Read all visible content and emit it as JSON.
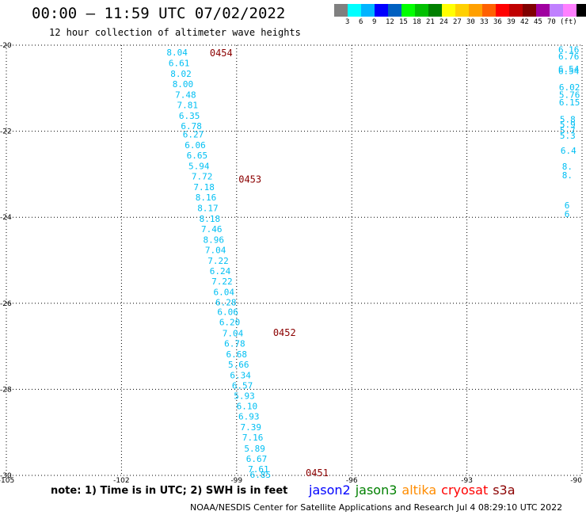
{
  "header": {
    "title": "00:00 – 11:59 UTC 07/02/2022",
    "subtitle": "12 hour collection of altimeter wave heights"
  },
  "colorbar": {
    "colors": [
      "#808080",
      "#00ffff",
      "#00b4ff",
      "#0000ff",
      "#0060c0",
      "#00ff00",
      "#00c000",
      "#008000",
      "#ffff00",
      "#ffd000",
      "#ffa000",
      "#ff6000",
      "#ff0000",
      "#c00000",
      "#800000",
      "#a000a0",
      "#c080ff",
      "#ff80ff",
      "#000000"
    ],
    "labels": [
      "3",
      "6",
      "9",
      "12",
      "15",
      "18",
      "21",
      "24",
      "27",
      "30",
      "33",
      "36",
      "39",
      "42",
      "45",
      "70"
    ],
    "unit": "(ft)"
  },
  "map": {
    "lon_range": [
      -105,
      -90
    ],
    "lat_range": [
      -30,
      -20
    ],
    "lon_ticks": [
      "-105",
      "-102",
      "-99",
      "-96",
      "-93",
      "-90"
    ],
    "lat_ticks": [
      "-20",
      "-22",
      "-24",
      "-26",
      "-28",
      "-30"
    ],
    "main_track": [
      {
        "lon": -100.55,
        "lat": -20.17,
        "swh": "8.04"
      },
      {
        "lon": -100.5,
        "lat": -20.41,
        "swh": "6.61"
      },
      {
        "lon": -100.45,
        "lat": -20.66,
        "swh": "8.02"
      },
      {
        "lon": -100.4,
        "lat": -20.9,
        "swh": "8.00"
      },
      {
        "lon": -100.33,
        "lat": -21.15,
        "swh": "7.48"
      },
      {
        "lon": -100.28,
        "lat": -21.39,
        "swh": "7.81"
      },
      {
        "lon": -100.23,
        "lat": -21.64,
        "swh": "6.35"
      },
      {
        "lon": -100.18,
        "lat": -21.88,
        "swh": "6.78"
      },
      {
        "lon": -100.13,
        "lat": -22.07,
        "swh": "6.27"
      },
      {
        "lon": -100.08,
        "lat": -22.32,
        "swh": "6.06"
      },
      {
        "lon": -100.03,
        "lat": -22.56,
        "swh": "6.65"
      },
      {
        "lon": -99.98,
        "lat": -22.81,
        "swh": "5.94"
      },
      {
        "lon": -99.9,
        "lat": -23.05,
        "swh": "7.72"
      },
      {
        "lon": -99.85,
        "lat": -23.3,
        "swh": "7.18"
      },
      {
        "lon": -99.8,
        "lat": -23.54,
        "swh": "8.16"
      },
      {
        "lon": -99.75,
        "lat": -23.78,
        "swh": "8.17"
      },
      {
        "lon": -99.7,
        "lat": -24.03,
        "swh": "8.18"
      },
      {
        "lon": -99.65,
        "lat": -24.27,
        "swh": "7.46"
      },
      {
        "lon": -99.6,
        "lat": -24.52,
        "swh": "8.96"
      },
      {
        "lon": -99.55,
        "lat": -24.76,
        "swh": "7.04"
      },
      {
        "lon": -99.48,
        "lat": -25.01,
        "swh": "7.22"
      },
      {
        "lon": -99.43,
        "lat": -25.25,
        "swh": "6.24"
      },
      {
        "lon": -99.38,
        "lat": -25.49,
        "swh": "7.22"
      },
      {
        "lon": -99.33,
        "lat": -25.74,
        "swh": "6.04"
      },
      {
        "lon": -99.28,
        "lat": -25.98,
        "swh": "6.28"
      },
      {
        "lon": -99.23,
        "lat": -26.2,
        "swh": "6.06"
      },
      {
        "lon": -99.18,
        "lat": -26.44,
        "swh": "6.20"
      },
      {
        "lon": -99.1,
        "lat": -26.69,
        "swh": "7.04"
      },
      {
        "lon": -99.05,
        "lat": -26.93,
        "swh": "6.78"
      },
      {
        "lon": -99.0,
        "lat": -27.18,
        "swh": "6.68"
      },
      {
        "lon": -98.95,
        "lat": -27.42,
        "swh": "5.66"
      },
      {
        "lon": -98.9,
        "lat": -27.67,
        "swh": "6.34"
      },
      {
        "lon": -98.85,
        "lat": -27.91,
        "swh": "6.57"
      },
      {
        "lon": -98.8,
        "lat": -28.15,
        "swh": "5.93"
      },
      {
        "lon": -98.73,
        "lat": -28.39,
        "swh": "6.10"
      },
      {
        "lon": -98.68,
        "lat": -28.63,
        "swh": "6.93"
      },
      {
        "lon": -98.63,
        "lat": -28.88,
        "swh": "7.39"
      },
      {
        "lon": -98.58,
        "lat": -29.12,
        "swh": "7.16"
      },
      {
        "lon": -98.53,
        "lat": -29.37,
        "swh": "5.89"
      },
      {
        "lon": -98.48,
        "lat": -29.61,
        "swh": "6.67"
      },
      {
        "lon": -98.43,
        "lat": -29.85,
        "swh": "7.61"
      },
      {
        "lon": -98.38,
        "lat": -29.98,
        "swh": "6.85"
      }
    ],
    "pass_labels": [
      {
        "lon": -99.7,
        "lat": -20.17,
        "text": "0454"
      },
      {
        "lon": -98.95,
        "lat": -23.1,
        "text": "0453"
      },
      {
        "lon": -98.05,
        "lat": -26.67,
        "text": "0452"
      },
      {
        "lon": -97.2,
        "lat": -29.93,
        "text": "0451"
      }
    ],
    "edge_track": [
      {
        "lon": -90.62,
        "lat": -20.1,
        "swh": "6.16"
      },
      {
        "lon": -90.62,
        "lat": -20.26,
        "swh": "6.76"
      },
      {
        "lon": -90.62,
        "lat": -20.55,
        "swh": "6.54"
      },
      {
        "lon": -90.62,
        "lat": -20.6,
        "swh": "6.54"
      },
      {
        "lon": -90.6,
        "lat": -20.98,
        "swh": "6.02"
      },
      {
        "lon": -90.6,
        "lat": -21.15,
        "swh": "5.76"
      },
      {
        "lon": -90.6,
        "lat": -21.33,
        "swh": "6.15"
      },
      {
        "lon": -90.58,
        "lat": -21.72,
        "swh": "5.8"
      },
      {
        "lon": -90.58,
        "lat": -21.84,
        "swh": "5.9"
      },
      {
        "lon": -90.58,
        "lat": -21.98,
        "swh": "5.7"
      },
      {
        "lon": -90.58,
        "lat": -22.1,
        "swh": "5.3"
      },
      {
        "lon": -90.56,
        "lat": -22.45,
        "swh": "6.4"
      },
      {
        "lon": -90.52,
        "lat": -22.82,
        "swh": "8."
      },
      {
        "lon": -90.52,
        "lat": -23.02,
        "swh": "8."
      },
      {
        "lon": -90.46,
        "lat": -23.72,
        "swh": "6"
      },
      {
        "lon": -90.46,
        "lat": -23.92,
        "swh": "6"
      }
    ]
  },
  "footer": {
    "note": "note: 1) Time is in UTC; 2) SWH is in feet",
    "missions": [
      {
        "name": "jason2",
        "color": "#0000ff"
      },
      {
        "name": "jason3",
        "color": "#008000"
      },
      {
        "name": "altika",
        "color": "#ff8c00"
      },
      {
        "name": "cryosat",
        "color": "#ff0000"
      },
      {
        "name": "s3a",
        "color": "#8b0000"
      }
    ],
    "credit": "NOAA/NESDIS Center for Satellite Applications and Research    Jul  4 08:29:10 UTC 2022"
  }
}
